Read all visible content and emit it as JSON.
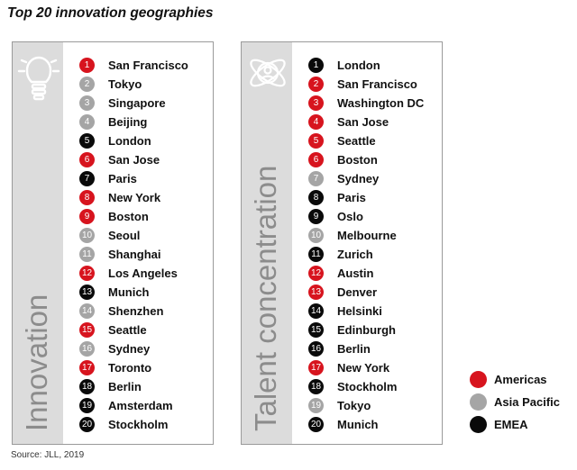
{
  "title": "Top 20 innovation geographies",
  "source": "Source: JLL, 2019",
  "colors": {
    "Americas": "#d7141e",
    "Asia Pacific": "#a5a5a5",
    "EMEA": "#0a0a0a"
  },
  "legend": [
    {
      "label": "Americas",
      "region": "Americas"
    },
    {
      "label": "Asia Pacific",
      "region": "Asia Pacific"
    },
    {
      "label": "EMEA",
      "region": "EMEA"
    }
  ],
  "icons": {
    "innovation": "lightbulb-icon",
    "talent": "atom-person-icon"
  },
  "chart_data": [
    {
      "type": "table",
      "title": "Innovation",
      "columns": [
        "rank",
        "city",
        "region"
      ],
      "rows": [
        {
          "rank": "1",
          "city": "San Francisco",
          "region": "Americas"
        },
        {
          "rank": "2",
          "city": "Tokyo",
          "region": "Asia Pacific"
        },
        {
          "rank": "3",
          "city": "Singapore",
          "region": "Asia Pacific"
        },
        {
          "rank": "4",
          "city": "Beijing",
          "region": "Asia Pacific"
        },
        {
          "rank": "5",
          "city": "London",
          "region": "EMEA"
        },
        {
          "rank": "6",
          "city": "San Jose",
          "region": "Americas"
        },
        {
          "rank": "7",
          "city": "Paris",
          "region": "EMEA"
        },
        {
          "rank": "8",
          "city": "New York",
          "region": "Americas"
        },
        {
          "rank": "9",
          "city": "Boston",
          "region": "Americas"
        },
        {
          "rank": "10",
          "city": "Seoul",
          "region": "Asia Pacific"
        },
        {
          "rank": "11",
          "city": "Shanghai",
          "region": "Asia Pacific"
        },
        {
          "rank": "12",
          "city": "Los Angeles",
          "region": "Americas"
        },
        {
          "rank": "13",
          "city": "Munich",
          "region": "EMEA"
        },
        {
          "rank": "14",
          "city": "Shenzhen",
          "region": "Asia Pacific"
        },
        {
          "rank": "15",
          "city": "Seattle",
          "region": "Americas"
        },
        {
          "rank": "16",
          "city": "Sydney",
          "region": "Asia Pacific"
        },
        {
          "rank": "17",
          "city": "Toronto",
          "region": "Americas"
        },
        {
          "rank": "18",
          "city": "Berlin",
          "region": "EMEA"
        },
        {
          "rank": "19",
          "city": "Amsterdam",
          "region": "EMEA"
        },
        {
          "rank": "20",
          "city": "Stockholm",
          "region": "EMEA"
        }
      ]
    },
    {
      "type": "table",
      "title": "Talent concentration",
      "columns": [
        "rank",
        "city",
        "region"
      ],
      "rows": [
        {
          "rank": "1",
          "city": "London",
          "region": "EMEA"
        },
        {
          "rank": "2",
          "city": "San Francisco",
          "region": "Americas"
        },
        {
          "rank": "3",
          "city": "Washington DC",
          "region": "Americas"
        },
        {
          "rank": "4",
          "city": "San Jose",
          "region": "Americas"
        },
        {
          "rank": "5",
          "city": "Seattle",
          "region": "Americas"
        },
        {
          "rank": "6",
          "city": "Boston",
          "region": "Americas"
        },
        {
          "rank": "7",
          "city": "Sydney",
          "region": "Asia Pacific"
        },
        {
          "rank": "8",
          "city": "Paris",
          "region": "EMEA"
        },
        {
          "rank": "9",
          "city": "Oslo",
          "region": "EMEA"
        },
        {
          "rank": "10",
          "city": "Melbourne",
          "region": "Asia Pacific"
        },
        {
          "rank": "11",
          "city": "Zurich",
          "region": "EMEA"
        },
        {
          "rank": "12",
          "city": "Austin",
          "region": "Americas"
        },
        {
          "rank": "13",
          "city": "Denver",
          "region": "Americas"
        },
        {
          "rank": "14",
          "city": "Helsinki",
          "region": "EMEA"
        },
        {
          "rank": "15",
          "city": "Edinburgh",
          "region": "EMEA"
        },
        {
          "rank": "16",
          "city": "Berlin",
          "region": "EMEA"
        },
        {
          "rank": "17",
          "city": "New York",
          "region": "Americas"
        },
        {
          "rank": "18",
          "city": "Stockholm",
          "region": "EMEA"
        },
        {
          "rank": "19",
          "city": "Tokyo",
          "region": "Asia Pacific"
        },
        {
          "rank": "20",
          "city": "Munich",
          "region": "EMEA"
        }
      ]
    }
  ]
}
